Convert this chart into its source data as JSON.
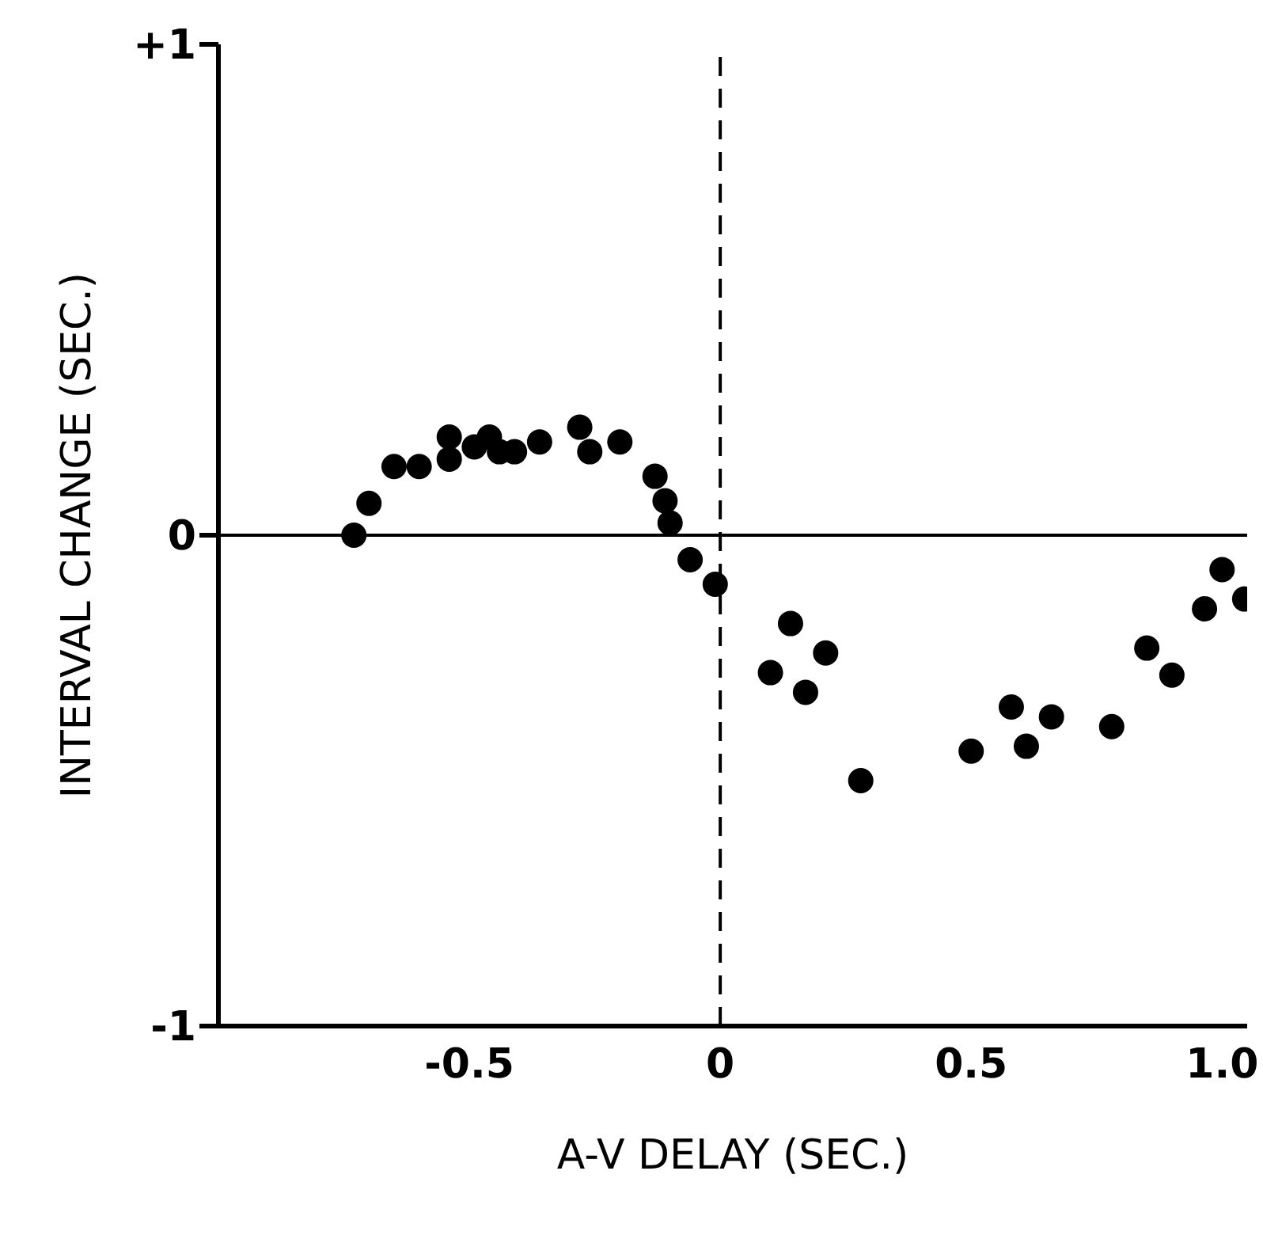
{
  "chart_data": {
    "type": "scatter",
    "xlabel": "A-V DELAY  (SEC.)",
    "ylabel": "INTERVAL CHANGE  (SEC.)",
    "x": [
      -0.73,
      -0.7,
      -0.65,
      -0.6,
      -0.54,
      -0.54,
      -0.49,
      -0.46,
      -0.44,
      -0.41,
      -0.36,
      -0.28,
      -0.26,
      -0.2,
      -0.13,
      -0.11,
      -0.1,
      -0.06,
      -0.01,
      0.1,
      0.14,
      0.17,
      0.21,
      0.28,
      0.5,
      0.58,
      0.61,
      0.66,
      0.78,
      0.85,
      0.9,
      0.965,
      1.0,
      1.045
    ],
    "series": [
      {
        "color": "#000000",
        "values": [
          0.0,
          0.065,
          0.14,
          0.14,
          0.2,
          0.155,
          0.18,
          0.2,
          0.17,
          0.17,
          0.19,
          0.22,
          0.17,
          0.19,
          0.12,
          0.07,
          0.025,
          -0.05,
          -0.1,
          -0.28,
          -0.18,
          -0.32,
          -0.24,
          -0.5,
          -0.44,
          -0.35,
          -0.43,
          -0.37,
          -0.39,
          -0.23,
          -0.285,
          -0.15,
          -0.07,
          -0.13
        ]
      }
    ],
    "xlim": [
      -1.0,
      1.05
    ],
    "xticks": [
      -0.5,
      0,
      0.5,
      {
        "value": 1,
        "label": "1.0"
      }
    ],
    "ylim": [
      -1,
      1
    ],
    "yticks": [
      {
        "value": 1,
        "label": "+1"
      },
      0,
      -1
    ],
    "marker": "circle",
    "ref_lines": [
      {
        "axis": "y",
        "value": 0,
        "line_style": "solid",
        "color": "#000000"
      },
      {
        "axis": "x",
        "value": 0,
        "line_style": "dashed",
        "color": "#000000"
      }
    ]
  }
}
